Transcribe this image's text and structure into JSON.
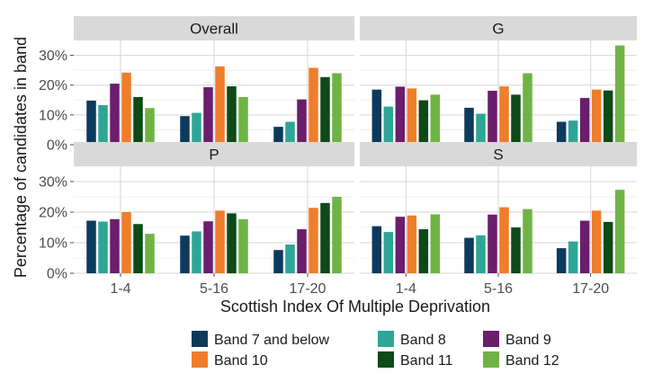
{
  "chart_data": {
    "type": "bar",
    "facets": [
      "Overall",
      "G",
      "P",
      "S"
    ],
    "categories": [
      "1-4",
      "5-16",
      "17-20"
    ],
    "xlabel": "Scottish Index Of Multiple Deprivation",
    "ylabel": "Percentage of candidates in band",
    "ylim": [
      0,
      35
    ],
    "yticks": [
      0,
      10,
      20,
      30
    ],
    "ytick_labels": [
      "0%",
      "10%",
      "20%",
      "30%"
    ],
    "grid": true,
    "legend_position": "bottom",
    "series": [
      {
        "name": "Band 7 and below",
        "color": "#0b3a5c"
      },
      {
        "name": "Band 8",
        "color": "#2fa597"
      },
      {
        "name": "Band 9",
        "color": "#6b1e6b"
      },
      {
        "name": "Band 10",
        "color": "#ef7d2b"
      },
      {
        "name": "Band 11",
        "color": "#0d4a17"
      },
      {
        "name": "Band 12",
        "color": "#6fb345"
      }
    ],
    "values": {
      "Overall": [
        [
          14.8,
          13.3,
          20.5,
          24.2,
          16.0,
          12.3
        ],
        [
          9.6,
          10.7,
          19.3,
          26.3,
          19.6,
          16.0
        ],
        [
          6.0,
          7.7,
          15.2,
          25.8,
          22.7,
          24.0
        ]
      ],
      "G": [
        [
          18.5,
          12.8,
          19.5,
          18.9,
          14.9,
          16.8
        ],
        [
          12.4,
          10.4,
          18.1,
          19.6,
          16.8,
          24.0
        ],
        [
          7.7,
          8.1,
          15.7,
          18.5,
          18.2,
          33.3
        ]
      ],
      "P": [
        [
          17.2,
          16.9,
          17.7,
          20.0,
          16.1,
          12.9
        ],
        [
          12.3,
          13.7,
          17.0,
          20.5,
          19.6,
          17.7
        ],
        [
          7.6,
          9.4,
          14.4,
          21.4,
          23.0,
          25.0
        ]
      ],
      "S": [
        [
          15.4,
          13.5,
          18.5,
          18.9,
          14.4,
          19.3
        ],
        [
          11.6,
          12.4,
          19.2,
          21.6,
          15.0,
          21.0
        ],
        [
          8.2,
          10.4,
          17.2,
          20.5,
          16.8,
          27.3
        ]
      ]
    }
  }
}
